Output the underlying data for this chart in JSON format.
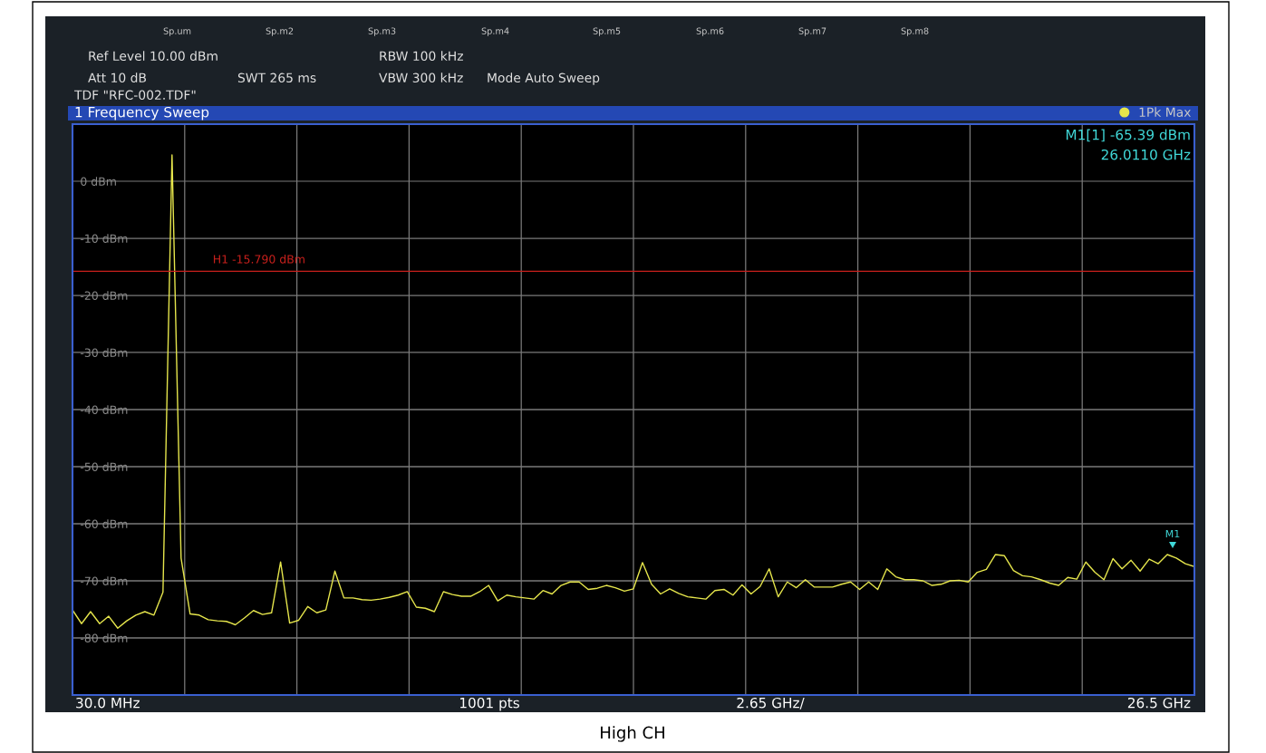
{
  "chart_data": {
    "type": "line",
    "title": "1 Frequency Sweep",
    "categories": [
      null,
      null,
      null,
      null,
      null,
      null,
      null,
      null,
      null,
      null,
      null,
      null,
      null,
      null,
      null,
      null,
      null,
      null,
      null,
      null,
      null,
      null,
      null,
      null,
      null,
      null,
      null,
      null,
      null,
      null,
      null,
      null,
      null,
      null,
      null,
      null,
      null,
      null,
      null,
      null,
      null,
      null,
      null,
      null,
      null,
      null,
      null,
      null,
      null,
      null,
      null,
      null,
      null,
      null,
      null,
      null,
      null,
      null,
      null,
      null,
      null,
      null,
      null,
      null,
      null,
      null,
      null,
      null,
      null,
      null,
      null,
      null,
      null,
      null,
      null,
      null,
      null,
      null,
      null,
      null,
      null,
      null,
      null,
      null,
      null,
      null,
      null,
      null,
      null,
      null,
      null,
      null,
      null,
      null,
      null,
      null,
      null,
      null,
      null,
      null,
      null,
      null,
      null,
      null,
      null,
      null,
      null,
      null,
      null,
      null,
      null,
      null,
      null,
      null,
      null,
      null,
      null,
      null,
      null,
      null,
      null,
      null,
      null,
      null,
      null
    ],
    "series": [
      {
        "name": "1Pk Max",
        "color": "#e6e64c",
        "values": [
          -75.1,
          -77.5,
          -75.4,
          -77.5,
          -76.2,
          -78.3,
          -77.0,
          -76.0,
          -75.4,
          -76.0,
          -72.0,
          4.6,
          -66.0,
          -75.8,
          -76.0,
          -76.8,
          -77.0,
          -77.1,
          -77.7,
          -76.5,
          -75.2,
          -75.9,
          -75.6,
          -66.7,
          -77.4,
          -76.9,
          -74.5,
          -75.6,
          -75.1,
          -68.3,
          -73.0,
          -73.0,
          -73.3,
          -73.4,
          -73.2,
          -72.9,
          -72.5,
          -71.9,
          -74.6,
          -74.8,
          -75.4,
          -71.9,
          -72.4,
          -72.7,
          -72.7,
          -71.9,
          -70.8,
          -73.5,
          -72.5,
          -72.8,
          -73.0,
          -73.2,
          -71.7,
          -72.3,
          -70.8,
          -70.2,
          -70.2,
          -71.5,
          -71.3,
          -70.8,
          -71.2,
          -71.8,
          -71.4,
          -66.8,
          -70.6,
          -72.3,
          -71.4,
          -72.2,
          -72.8,
          -73.0,
          -73.2,
          -71.7,
          -71.5,
          -72.5,
          -70.7,
          -72.3,
          -71.0,
          -67.9,
          -72.8,
          -70.2,
          -71.2,
          -69.8,
          -71.1,
          -71.1,
          -71.1,
          -70.6,
          -70.2,
          -71.5,
          -70.2,
          -71.5,
          -67.9,
          -69.3,
          -69.8,
          -69.8,
          -70.0,
          -70.8,
          -70.6,
          -70.0,
          -69.9,
          -70.2,
          -68.5,
          -68.0,
          -65.4,
          -65.6,
          -68.2,
          -69.1,
          -69.3,
          -69.8,
          -70.4,
          -70.8,
          -69.4,
          -69.7,
          -66.7,
          -68.5,
          -69.8,
          -66.1,
          -67.9,
          -66.4,
          -68.3,
          -66.2,
          -67.0,
          -65.4,
          -66.0,
          -67.0,
          -67.5
        ]
      }
    ],
    "ylim": [
      -90,
      10
    ],
    "yticks": [
      {
        "value": 10,
        "label": null
      },
      {
        "value": 0,
        "label": "0 dBm"
      },
      {
        "value": -10,
        "label": "-10 dBm"
      },
      {
        "value": -20,
        "label": "-20 dBm"
      },
      {
        "value": -30,
        "label": "-30 dBm"
      },
      {
        "value": -40,
        "label": "-40 dBm"
      },
      {
        "value": -50,
        "label": "-50 dBm"
      },
      {
        "value": -60,
        "label": "-60 dBm"
      },
      {
        "value": -70,
        "label": "-70 dBm"
      },
      {
        "value": -80,
        "label": "-80 dBm"
      },
      {
        "value": -90,
        "label": null
      }
    ],
    "tick_labels": "y",
    "grid": true,
    "legend": "top right",
    "ref_lines": [
      {
        "axis": "y",
        "value": -15.79,
        "label": "H1 -15.790 dBm",
        "color": "#c8201c"
      }
    ],
    "annotations": [
      "Sp.um",
      "Sp.m2",
      "Sp.m3",
      "Sp.m4",
      "Sp.m5",
      "Sp.m6",
      "Sp.m7",
      "Sp.m8",
      "Ref Level 10.00 dBm",
      "Att 10 dB",
      "SWT 265 ms",
      "RBW 100 kHz",
      "VBW 300 kHz",
      "Mode Auto Sweep",
      "TDF \"RFC-002.TDF\"",
      "M1[1] -65.39 dBm",
      "26.0110 GHz",
      "30.0 MHz",
      "1001 pts",
      "2.65 GHz/",
      "26.5 GHz",
      "High CH",
      "M1"
    ]
  }
}
